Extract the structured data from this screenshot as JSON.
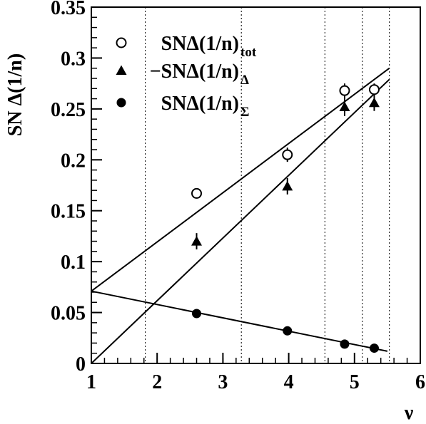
{
  "chart_data": {
    "type": "scatter",
    "title": "",
    "xlabel": "ν",
    "ylabel": "SN Δ(1/n)",
    "xlim": [
      1,
      6
    ],
    "ylim": [
      0,
      0.35
    ],
    "xticks": [
      "1",
      "2",
      "3",
      "4",
      "5",
      "6"
    ],
    "yticks": [
      "0",
      "0.05",
      "0.1",
      "0.15",
      "0.2",
      "0.25",
      "0.3",
      "0.35"
    ],
    "grid": false,
    "legend_position": "top-left",
    "vertical_dotted_lines_x": [
      1.82,
      3.28,
      4.55,
      5.12,
      5.53
    ],
    "series": [
      {
        "name": "SNΔ(1/n)",
        "name_sub": "tot",
        "marker": "open-circle",
        "x": [
          2.6,
          3.98,
          4.85,
          5.3
        ],
        "y": [
          0.167,
          0.205,
          0.268,
          0.269
        ],
        "err": [
          0.005,
          0.007,
          0.007,
          0.006
        ]
      },
      {
        "name": "−SNΔ(1/n)",
        "name_sub": "Δ",
        "marker": "filled-triangle",
        "x": [
          2.6,
          3.98,
          4.85,
          5.3
        ],
        "y": [
          0.12,
          0.174,
          0.252,
          0.256
        ],
        "err": [
          0.008,
          0.008,
          0.009,
          0.008
        ]
      },
      {
        "name": "SNΔ(1/n)",
        "name_sub": "Σ",
        "marker": "filled-circle",
        "x": [
          2.6,
          3.98,
          4.85,
          5.3
        ],
        "y": [
          0.049,
          0.032,
          0.019,
          0.015
        ],
        "err": [
          0.001,
          0.001,
          0.001,
          0.001
        ]
      }
    ],
    "fit_lines": [
      {
        "x": [
          1,
          5.53
        ],
        "y": [
          0.071,
          0.29
        ]
      },
      {
        "x": [
          1,
          5.53
        ],
        "y": [
          0.0,
          0.279
        ]
      },
      {
        "x": [
          1,
          5.5
        ],
        "y": [
          0.071,
          0.012
        ]
      }
    ]
  }
}
